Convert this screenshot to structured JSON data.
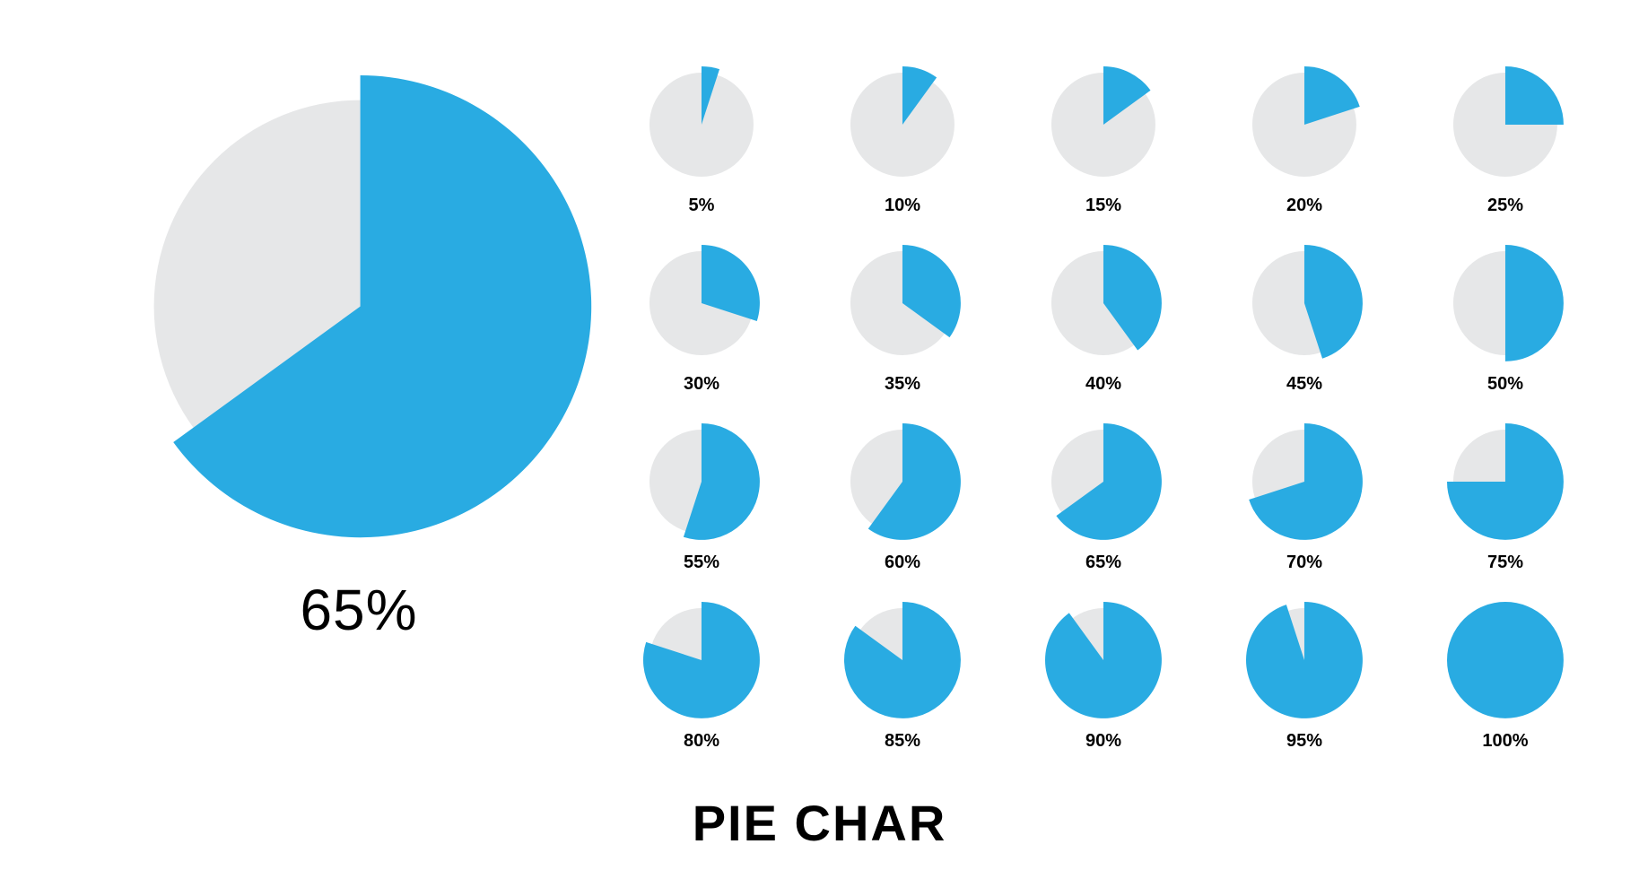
{
  "title": "PIE CHAR",
  "colors": {
    "slice": "#29abe2",
    "remainder": "#e6e7e8",
    "background": "#ffffff",
    "text": "#000000"
  },
  "main_chart": {
    "type": "pie",
    "percent": 65,
    "label": "65%",
    "radius": 230,
    "slice_scale": 1.12,
    "label_fontsize": 64
  },
  "grid": {
    "columns": 5,
    "rows": 4,
    "item_radius": 58,
    "slice_scale": 1.12,
    "label_fontsize": 20,
    "items": [
      {
        "percent": 5,
        "label": "5%"
      },
      {
        "percent": 10,
        "label": "10%"
      },
      {
        "percent": 15,
        "label": "15%"
      },
      {
        "percent": 20,
        "label": "20%"
      },
      {
        "percent": 25,
        "label": "25%"
      },
      {
        "percent": 30,
        "label": "30%"
      },
      {
        "percent": 35,
        "label": "35%"
      },
      {
        "percent": 40,
        "label": "40%"
      },
      {
        "percent": 45,
        "label": "45%"
      },
      {
        "percent": 50,
        "label": "50%"
      },
      {
        "percent": 55,
        "label": "55%"
      },
      {
        "percent": 60,
        "label": "60%"
      },
      {
        "percent": 65,
        "label": "65%"
      },
      {
        "percent": 70,
        "label": "70%"
      },
      {
        "percent": 75,
        "label": "75%"
      },
      {
        "percent": 80,
        "label": "80%"
      },
      {
        "percent": 85,
        "label": "85%"
      },
      {
        "percent": 90,
        "label": "90%"
      },
      {
        "percent": 95,
        "label": "95%"
      },
      {
        "percent": 100,
        "label": "100%"
      }
    ]
  }
}
